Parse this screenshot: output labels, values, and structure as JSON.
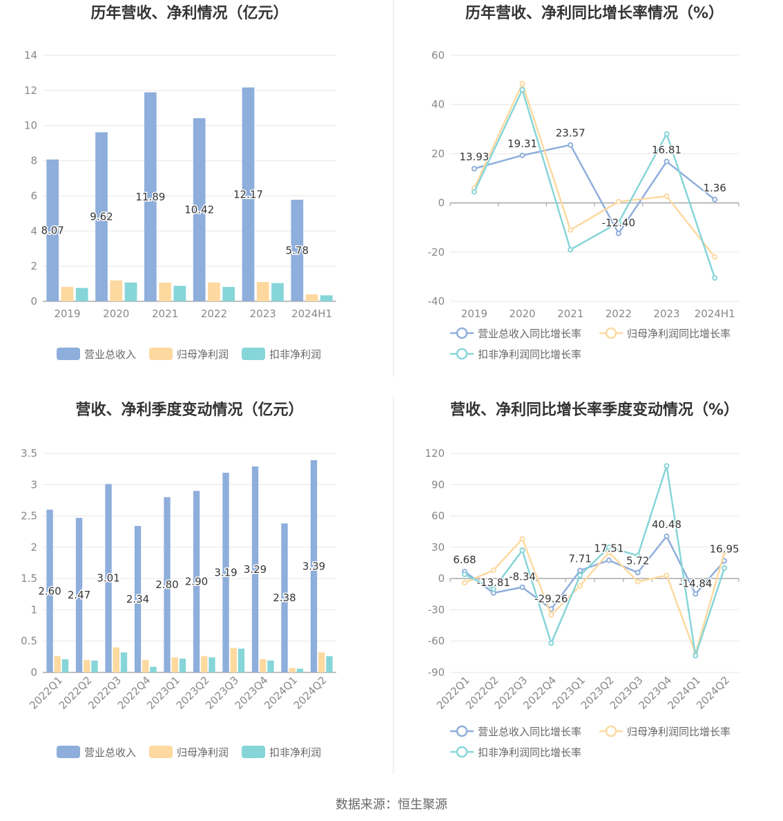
{
  "footer": "数据来源：恒生聚源",
  "chart_data": [
    {
      "type": "bar",
      "title": "历年营收、净利情况（亿元）",
      "categories": [
        "2019",
        "2020",
        "2021",
        "2022",
        "2023",
        "2024H1"
      ],
      "ylim": [
        0,
        14
      ],
      "yticks": [
        0,
        2,
        4,
        6,
        8,
        10,
        12,
        14
      ],
      "grid": true,
      "legend": "bottom",
      "label_series": 0,
      "series": [
        {
          "name": "营业总收入",
          "color": "#8eaedb",
          "values": [
            8.07,
            9.62,
            11.89,
            10.42,
            12.17,
            5.78
          ]
        },
        {
          "name": "归母净利润",
          "color": "#fdd9a0",
          "values": [
            0.82,
            1.19,
            1.06,
            1.07,
            1.1,
            0.4
          ]
        },
        {
          "name": "扣非净利润",
          "color": "#86d5d8",
          "values": [
            0.76,
            1.07,
            0.88,
            0.82,
            1.04,
            0.34
          ]
        }
      ]
    },
    {
      "type": "line",
      "title": "历年营收、净利同比增长率情况（%）",
      "categories": [
        "2019",
        "2020",
        "2021",
        "2022",
        "2023",
        "2024H1"
      ],
      "ylim": [
        -40,
        60
      ],
      "yticks": [
        -40,
        -20,
        0,
        20,
        40,
        60
      ],
      "grid": true,
      "legend": "bottom",
      "label_series": 0,
      "series": [
        {
          "name": "营业总收入同比增长率",
          "color": "#8eaedb",
          "values": [
            13.93,
            19.31,
            23.57,
            -12.4,
            16.81,
            1.36
          ]
        },
        {
          "name": "归母净利润同比增长率",
          "color": "#fdd9a0",
          "values": [
            6,
            48.5,
            -11,
            0.5,
            2.7,
            -22
          ]
        },
        {
          "name": "扣非净利润同比增长率",
          "color": "#86d5d8",
          "values": [
            4.5,
            46,
            -19,
            -8,
            28,
            -30.5
          ]
        }
      ]
    },
    {
      "type": "bar",
      "title": "营收、净利季度变动情况（亿元）",
      "categories": [
        "2022Q1",
        "2022Q2",
        "2022Q3",
        "2022Q4",
        "2023Q1",
        "2023Q2",
        "2023Q3",
        "2023Q4",
        "2024Q1",
        "2024Q2"
      ],
      "ylim": [
        0,
        3.5
      ],
      "yticks": [
        0,
        0.5,
        1,
        1.5,
        2,
        2.5,
        3,
        3.5
      ],
      "grid": true,
      "legend": "bottom",
      "label_series": 0,
      "series": [
        {
          "name": "营业总收入",
          "color": "#8eaedb",
          "values": [
            2.6,
            2.47,
            3.01,
            2.34,
            2.8,
            2.9,
            3.19,
            3.29,
            2.38,
            3.39
          ]
        },
        {
          "name": "归母净利润",
          "color": "#fdd9a0",
          "values": [
            0.26,
            0.2,
            0.4,
            0.2,
            0.24,
            0.26,
            0.39,
            0.21,
            0.07,
            0.32
          ]
        },
        {
          "name": "扣非净利润",
          "color": "#86d5d8",
          "values": [
            0.21,
            0.19,
            0.32,
            0.09,
            0.22,
            0.24,
            0.38,
            0.19,
            0.06,
            0.26
          ]
        }
      ]
    },
    {
      "type": "line",
      "title": "营收、净利同比增长率季度变动情况（%）",
      "categories": [
        "2022Q1",
        "2022Q2",
        "2022Q3",
        "2022Q4",
        "2023Q1",
        "2023Q2",
        "2023Q3",
        "2023Q4",
        "2024Q1",
        "2024Q2"
      ],
      "ylim": [
        -90,
        120
      ],
      "yticks": [
        -90,
        -60,
        -30,
        0,
        30,
        60,
        90,
        120
      ],
      "grid": true,
      "legend": "bottom",
      "label_series": 0,
      "series": [
        {
          "name": "营业总收入同比增长率",
          "color": "#8eaedb",
          "values": [
            6.68,
            -13.81,
            -8.34,
            -29.26,
            7.71,
            17.51,
            5.72,
            40.48,
            -14.84,
            16.95
          ]
        },
        {
          "name": "归母净利润同比增长率",
          "color": "#fdd9a0",
          "values": [
            -4,
            8,
            38,
            -35,
            -7,
            25,
            -3,
            3,
            -72,
            25
          ]
        },
        {
          "name": "扣非净利润同比增长率",
          "color": "#86d5d8",
          "values": [
            4,
            -10,
            27,
            -62,
            3,
            30,
            22,
            108,
            -74,
            10
          ]
        }
      ]
    }
  ]
}
